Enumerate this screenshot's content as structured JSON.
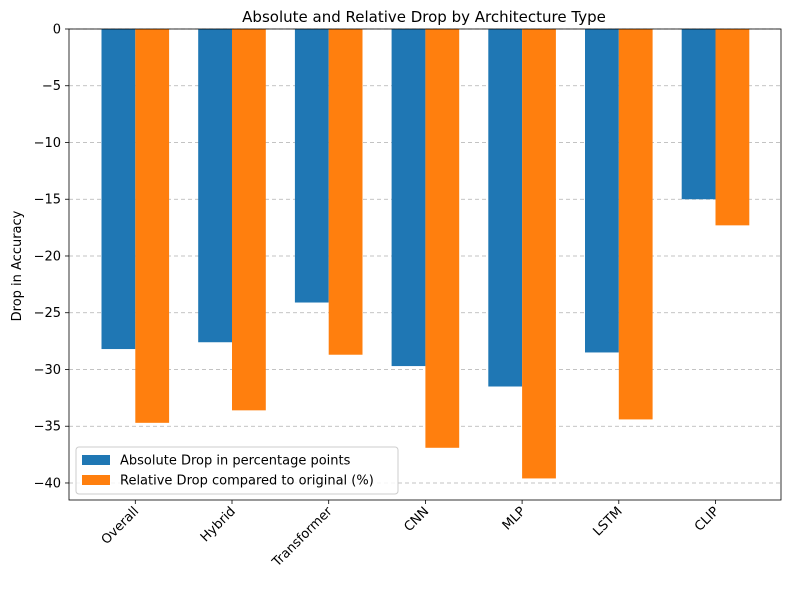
{
  "chart_data": {
    "type": "bar",
    "title": "Absolute and Relative Drop by Architecture Type",
    "xlabel": "",
    "ylabel": "Drop in Accuracy",
    "categories": [
      "Overall",
      "Hybrid",
      "Transformer",
      "CNN",
      "MLP",
      "LSTM",
      "CLIP"
    ],
    "series": [
      {
        "name": "Absolute Drop in percentage points",
        "color": "#1f77b4",
        "values": [
          -28.2,
          -27.6,
          -24.1,
          -29.7,
          -31.5,
          -28.5,
          -15.0
        ]
      },
      {
        "name": "Relative Drop compared to original (%)",
        "color": "#ff7f0e",
        "values": [
          -34.7,
          -33.6,
          -28.7,
          -36.9,
          -39.6,
          -34.4,
          -17.3
        ]
      }
    ],
    "ylim": [
      -41.5,
      0
    ],
    "yticks": [
      0,
      -5,
      -10,
      -15,
      -20,
      -25,
      -30,
      -35,
      -40
    ],
    "grid": "y-dashed",
    "legend_position": "lower-left"
  }
}
